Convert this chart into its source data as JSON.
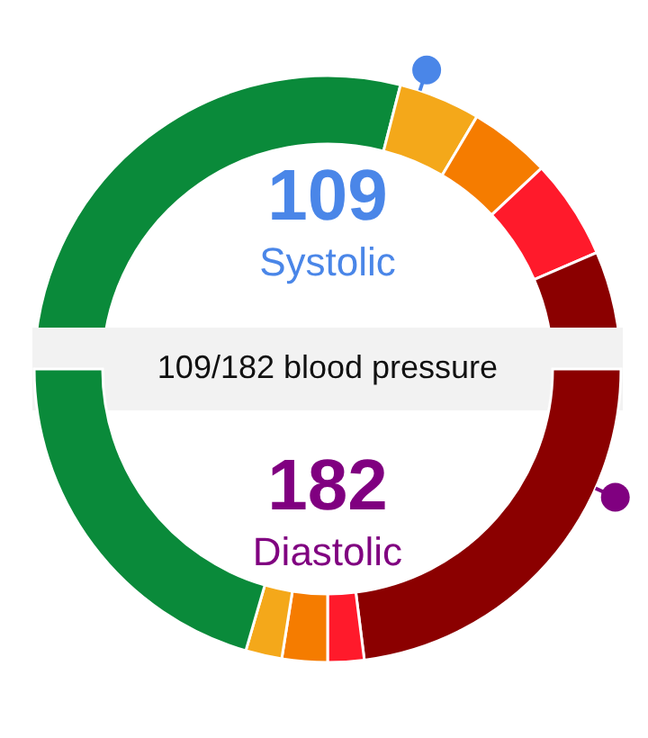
{
  "chart_data": [
    {
      "type": "donut",
      "title": "109",
      "subtitle": "Systolic",
      "annotations": [
        "109/182 blood pressure"
      ],
      "categories": [
        null,
        null,
        null,
        null,
        null
      ],
      "values": [
        58,
        9,
        9,
        11,
        13
      ],
      "colors": [
        "#0a8a3a",
        "#f4a81a",
        "#f57c00",
        "#ff1a2b",
        "#8b0000"
      ]
    },
    {
      "type": "donut",
      "title": "182",
      "subtitle": "Diastolic",
      "categories": [
        null,
        null,
        null,
        null,
        null
      ],
      "values": [
        46,
        4,
        5,
        4,
        41
      ],
      "colors": [
        "#8b0000",
        "#ff1a2b",
        "#f57c00",
        "#f4a81a",
        "#0a8a3a"
      ]
    }
  ]
}
